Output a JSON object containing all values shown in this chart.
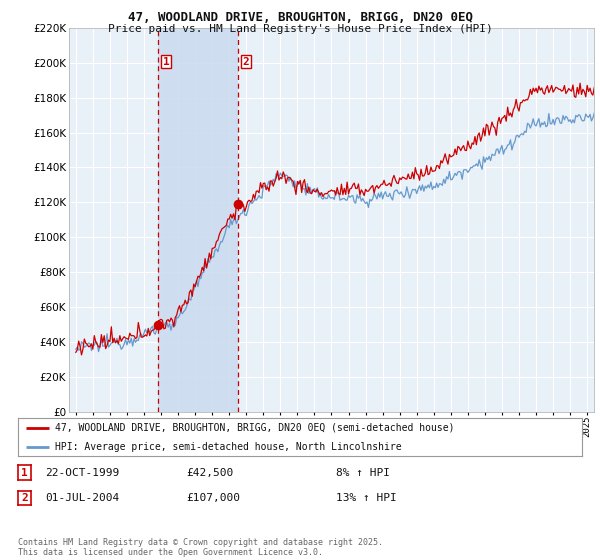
{
  "title_line1": "47, WOODLAND DRIVE, BROUGHTON, BRIGG, DN20 0EQ",
  "title_line2": "Price paid vs. HM Land Registry's House Price Index (HPI)",
  "background_color": "#ffffff",
  "plot_bg_color": "#e8f0f8",
  "grid_color": "#ffffff",
  "line1_color": "#cc0000",
  "line2_color": "#6699cc",
  "vline_color": "#cc0000",
  "shade_color": "#ccddf0",
  "legend1_label": "47, WOODLAND DRIVE, BROUGHTON, BRIGG, DN20 0EQ (semi-detached house)",
  "legend2_label": "HPI: Average price, semi-detached house, North Lincolnshire",
  "sale1_date": "22-OCT-1999",
  "sale1_price": "£42,500",
  "sale1_hpi": "8% ↑ HPI",
  "sale1_year": 1999.81,
  "sale1_value": 42500,
  "sale2_date": "01-JUL-2004",
  "sale2_price": "£107,000",
  "sale2_hpi": "13% ↑ HPI",
  "sale2_year": 2004.5,
  "sale2_value": 107000,
  "ylim_max": 220000,
  "ylim_min": 0,
  "xlim_min": 1994.6,
  "xlim_max": 2025.4,
  "footnote": "Contains HM Land Registry data © Crown copyright and database right 2025.\nThis data is licensed under the Open Government Licence v3.0.",
  "ytick_step": 20000
}
